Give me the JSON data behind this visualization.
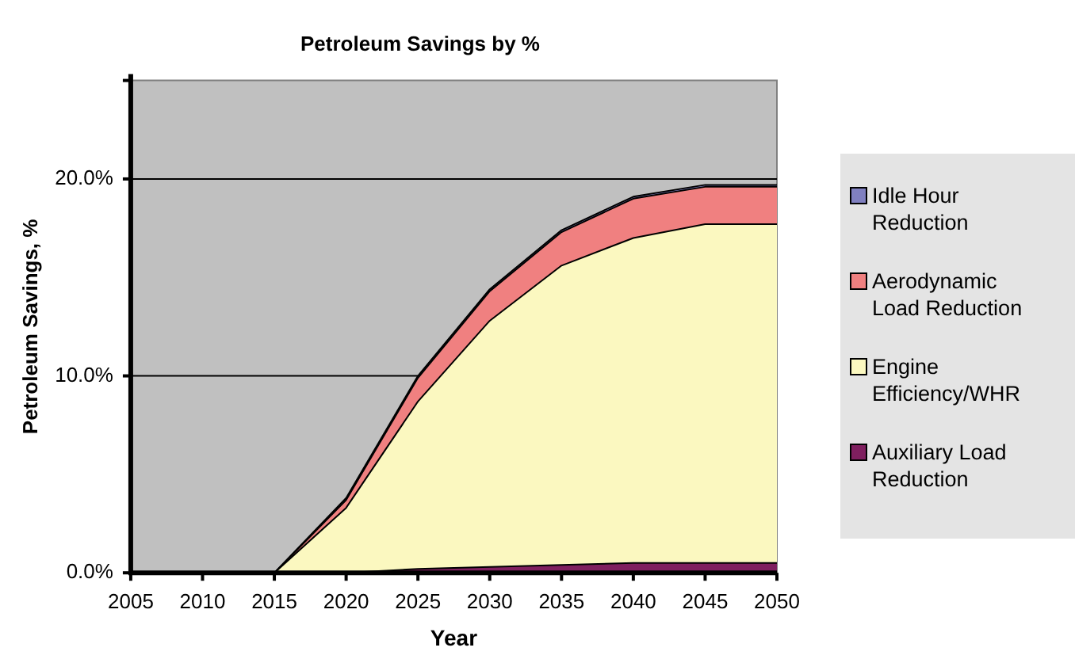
{
  "chart_data": {
    "type": "area",
    "title": "Petroleum Savings by %",
    "xlabel": "Year",
    "ylabel": "Petroleum Savings, %",
    "x": [
      2005,
      2010,
      2015,
      2020,
      2025,
      2030,
      2035,
      2040,
      2045,
      2050
    ],
    "stacked": true,
    "series": [
      {
        "name": "Auxiliary Load Reduction",
        "color": "#7f1f5f",
        "values": [
          0,
          0,
          0,
          0,
          0.2,
          0.3,
          0.4,
          0.5,
          0.5,
          0.5
        ]
      },
      {
        "name": "Engine Efficiency/WHR",
        "color": "#fbf8c0",
        "values": [
          0,
          0,
          0,
          3.3,
          8.5,
          12.5,
          15.2,
          16.5,
          17.2,
          17.2
        ]
      },
      {
        "name": "Aerodynamic Load Reduction",
        "color": "#f08080",
        "values": [
          0,
          0,
          0,
          0.4,
          1.2,
          1.5,
          1.7,
          2.0,
          1.9,
          1.9
        ]
      },
      {
        "name": "Idle Hour Reduction",
        "color": "#8080c0",
        "values": [
          0,
          0,
          0,
          0.1,
          0.1,
          0.1,
          0.1,
          0.1,
          0.1,
          0.1
        ]
      }
    ],
    "xlim": [
      2005,
      2050
    ],
    "xticks": [
      2005,
      2010,
      2015,
      2020,
      2025,
      2030,
      2035,
      2040,
      2045,
      2050
    ],
    "ylim": [
      0,
      25
    ],
    "yticks": [
      {
        "value": 0,
        "label": "0.0%"
      },
      {
        "value": 10,
        "label": "10.0%"
      },
      {
        "value": 20,
        "label": "20.0%"
      },
      {
        "value": 25,
        "label": null
      }
    ],
    "grid": "y",
    "legend": "right"
  }
}
